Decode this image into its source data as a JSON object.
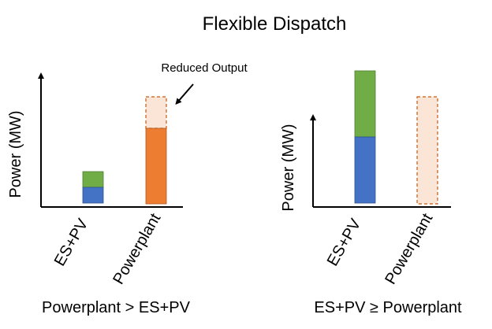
{
  "title": "Flexible Dispatch",
  "colors": {
    "es_green": "#70ad47",
    "es_blue": "#4472c4",
    "powerplant_orange": "#ed7d31",
    "reduced_fill": "#fbe5d6",
    "reduced_dash": "#c55a11",
    "axis": "#000000"
  },
  "left_panel": {
    "y_axis_label": "Power (MW)",
    "categories": [
      "ES+PV",
      "Powerplant"
    ],
    "annotation": "Reduced Output",
    "caption": "Powerplant > ES+PV",
    "bars": {
      "es_pv": {
        "green_segment": 20,
        "blue_segment": 20
      },
      "powerplant": {
        "solid_output": 96,
        "reduced_output": 40
      }
    }
  },
  "right_panel": {
    "y_axis_label": "Power (MW)",
    "categories": [
      "ES+PV",
      "Powerplant"
    ],
    "caption": "ES+PV ≥ Powerplant",
    "bars": {
      "es_pv": {
        "green_segment": 84,
        "blue_segment": 84
      },
      "powerplant": {
        "solid_output": 0,
        "reduced_output": 136
      }
    }
  }
}
